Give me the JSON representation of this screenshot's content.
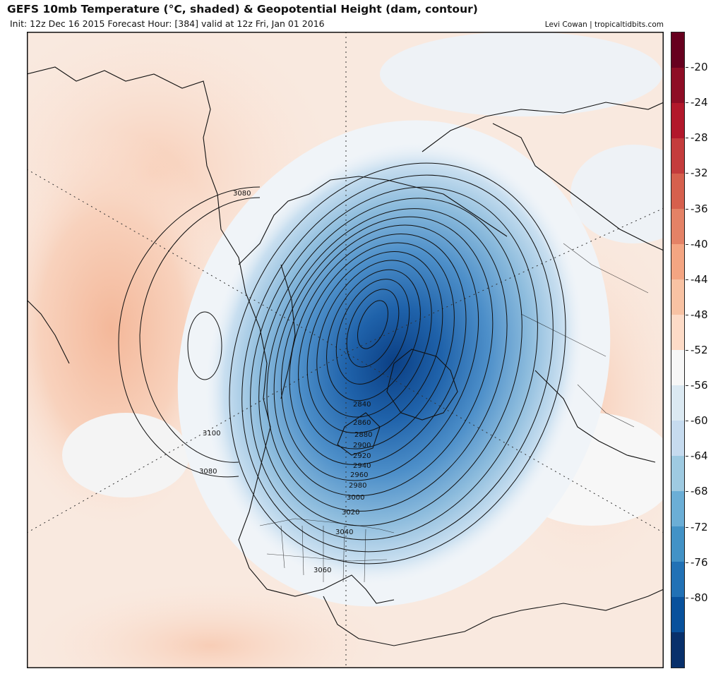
{
  "header": {
    "title": "GEFS 10mb Temperature (°C, shaded) & Geopotential Height (dam, contour)",
    "subtitle": "Init: 12z Dec 16 2015   Forecast Hour: [384]   valid at 12z Fri, Jan 01 2016",
    "credit": "Levi Cowan | tropicaltidbits.com"
  },
  "colorbar": {
    "labels": [
      "-20",
      "-24",
      "-28",
      "-32",
      "-36",
      "-40",
      "-44",
      "-48",
      "-52",
      "-56",
      "-60",
      "-64",
      "-68",
      "-72",
      "-76",
      "-80"
    ],
    "colors": [
      "#67001f",
      "#8e0d25",
      "#b2182b",
      "#c43c3c",
      "#d6604d",
      "#e48266",
      "#f4a582",
      "#f8c2a3",
      "#fddbc7",
      "#f7f7f7",
      "#dbe9f2",
      "#c6dbef",
      "#9ecae1",
      "#6baed6",
      "#4292c6",
      "#2171b5",
      "#08519c",
      "#08306b"
    ]
  },
  "contour_labels": [
    "3080",
    "3100",
    "3080",
    "2840",
    "2860",
    "2880",
    "2900",
    "2920",
    "2940",
    "2960",
    "2980",
    "3000",
    "3020",
    "3040",
    "3060"
  ]
}
